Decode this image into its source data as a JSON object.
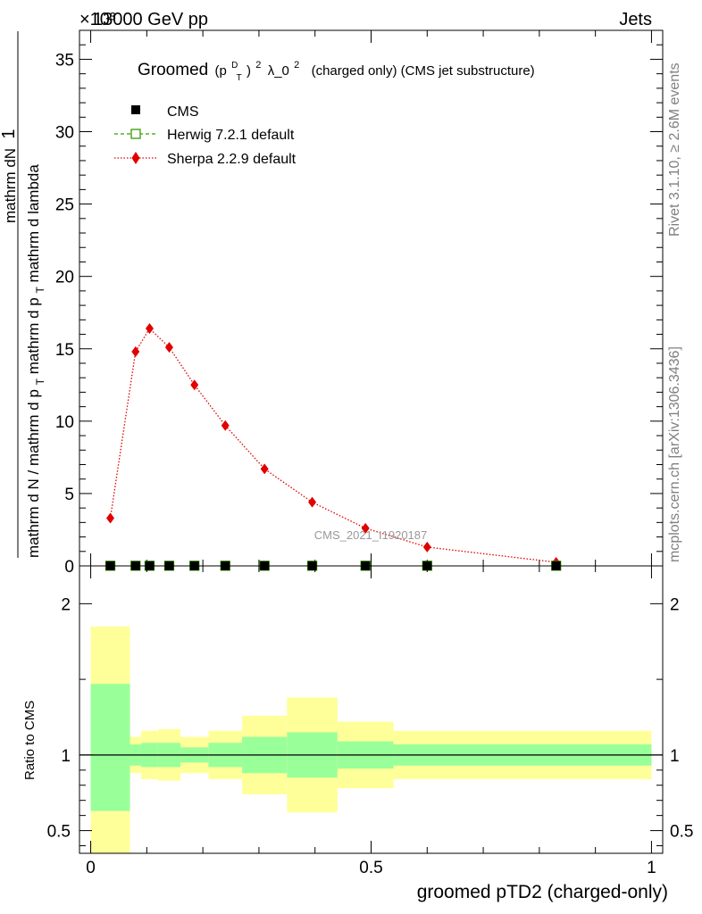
{
  "header": {
    "left": "13000 GeV pp",
    "right": "Jets",
    "exponent": "×10³"
  },
  "side_labels": {
    "rivet": "Rivet 3.1.10, ≥ 2.6M events",
    "mcplots": "mcplots.cern.ch [arXiv:1306.3436]"
  },
  "watermark": "CMS_2021_I1920187",
  "colors": {
    "herwig": "#3a9a00",
    "sherpa": "#e00000",
    "band_inner": "#99ff99",
    "band_outer": "#ffff99",
    "data": "#000000"
  },
  "chart_data": [
    {
      "type": "scatter",
      "title": "Groomed (p_T^D)² λ_0² (charged only) (CMS jet substructure)",
      "title_parts": {
        "pre": "Groomed",
        "p": "(p",
        "sup_d": "D",
        "sub_t": "T",
        "close": ")",
        "sq": "2",
        "lam": "λ_0",
        "sq2": "2",
        "post": "(charged only) (CMS jet substructure)"
      },
      "ylabel_parts": {
        "numerator": "mathrm dN",
        "denominator": "mathrm d p",
        "den_sub": "T",
        "den_post": "mathrm d lambda",
        "front_num": "1",
        "front_den": "mathrm d N / mathrm d p",
        "front_sub": "T",
        "front_post": "mathrm d p"
      },
      "xlim": [
        -0.02,
        1.02
      ],
      "ylim": [
        0,
        37
      ],
      "y_ticks": [
        0,
        5,
        10,
        15,
        20,
        25,
        30,
        35
      ],
      "y_scale_exponent": 3,
      "legend_placement": "top-left",
      "series": [
        {
          "name": "CMS",
          "x": [
            0.035,
            0.08,
            0.105,
            0.14,
            0.185,
            0.24,
            0.31,
            0.395,
            0.49,
            0.6,
            0.83
          ],
          "y": [
            0.01,
            0.01,
            0.01,
            0.01,
            0.01,
            0.01,
            0.01,
            0.01,
            0.01,
            0.01,
            0.01
          ]
        },
        {
          "name": "Herwig 7.2.1 default",
          "x": [
            0.035,
            0.08,
            0.105,
            0.14,
            0.185,
            0.24,
            0.31,
            0.395,
            0.49,
            0.6,
            0.83
          ],
          "y": [
            0.01,
            0.01,
            0.01,
            0.01,
            0.01,
            0.01,
            0.01,
            0.01,
            0.01,
            0.01,
            0.01
          ]
        },
        {
          "name": "Sherpa 2.2.9 default",
          "x": [
            0.035,
            0.08,
            0.105,
            0.14,
            0.185,
            0.24,
            0.31,
            0.395,
            0.49,
            0.6,
            0.83
          ],
          "y": [
            3.3,
            14.8,
            16.4,
            15.1,
            12.5,
            9.7,
            6.7,
            4.4,
            2.6,
            1.3,
            0.25
          ]
        }
      ]
    },
    {
      "type": "area",
      "ylabel": "Ratio to CMS",
      "xlabel": "groomed pTD2 (charged-only)",
      "xlim": [
        -0.02,
        1.02
      ],
      "ylim": [
        0.35,
        2.25
      ],
      "y_ticks": [
        0.5,
        1,
        2
      ],
      "y_tick_labels": [
        "0.5",
        "1",
        "2"
      ],
      "x_ticks": [
        0,
        0.5,
        1
      ],
      "x_tick_labels": [
        "0",
        "0.5",
        "1"
      ],
      "reference": 1,
      "bins": [
        {
          "lo": 0.0,
          "hi": 0.07,
          "in_lo": 0.63,
          "in_hi": 1.47,
          "out_lo": 0.35,
          "out_hi": 1.85
        },
        {
          "lo": 0.07,
          "hi": 0.09,
          "in_lo": 0.93,
          "in_hi": 1.07,
          "out_lo": 0.88,
          "out_hi": 1.12
        },
        {
          "lo": 0.09,
          "hi": 0.12,
          "in_lo": 0.92,
          "in_hi": 1.08,
          "out_lo": 0.84,
          "out_hi": 1.16
        },
        {
          "lo": 0.12,
          "hi": 0.16,
          "in_lo": 0.92,
          "in_hi": 1.08,
          "out_lo": 0.83,
          "out_hi": 1.17
        },
        {
          "lo": 0.16,
          "hi": 0.21,
          "in_lo": 0.95,
          "in_hi": 1.05,
          "out_lo": 0.88,
          "out_hi": 1.12
        },
        {
          "lo": 0.21,
          "hi": 0.27,
          "in_lo": 0.92,
          "in_hi": 1.08,
          "out_lo": 0.84,
          "out_hi": 1.16
        },
        {
          "lo": 0.27,
          "hi": 0.35,
          "in_lo": 0.88,
          "in_hi": 1.12,
          "out_lo": 0.74,
          "out_hi": 1.26
        },
        {
          "lo": 0.35,
          "hi": 0.44,
          "in_lo": 0.85,
          "in_hi": 1.15,
          "out_lo": 0.62,
          "out_hi": 1.38
        },
        {
          "lo": 0.44,
          "hi": 0.54,
          "in_lo": 0.91,
          "in_hi": 1.09,
          "out_lo": 0.78,
          "out_hi": 1.22
        },
        {
          "lo": 0.54,
          "hi": 1.0,
          "in_lo": 0.93,
          "in_hi": 1.07,
          "out_lo": 0.84,
          "out_hi": 1.16
        }
      ]
    }
  ]
}
